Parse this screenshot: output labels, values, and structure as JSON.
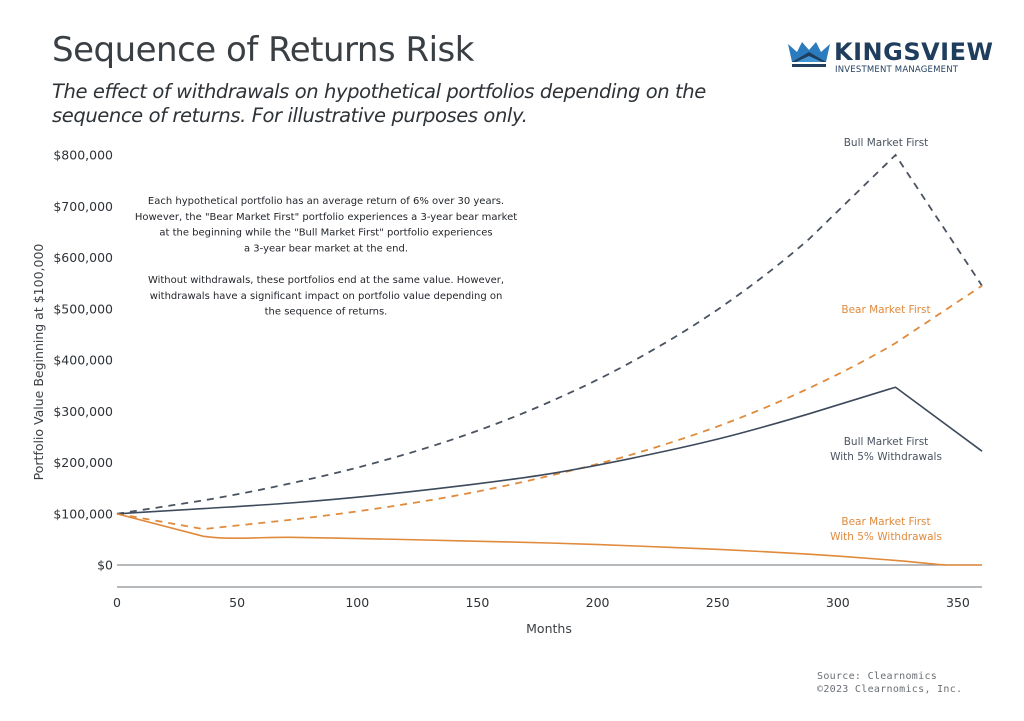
{
  "header": {
    "title": "Sequence of Returns Risk",
    "subtitle": "The effect of withdrawals on hypothetical portfolios depending on the sequence of returns. For illustrative purposes only."
  },
  "logo": {
    "name": "KINGSVIEW",
    "tagline": "INVESTMENT MANAGEMENT",
    "icon": "crown-icon",
    "color": "#1f3d5c",
    "accent": "#2b7bbf"
  },
  "footer": {
    "source": "Source: Clearnomics",
    "copyright": "©2023 Clearnomics, Inc."
  },
  "chart_data": {
    "type": "line",
    "title": "Sequence of Returns Risk",
    "xlabel": "Months",
    "ylabel": "Portfolio Value Beginning at $100,000",
    "xlim": [
      0,
      360
    ],
    "ylim": [
      0,
      800000
    ],
    "x_ticks": [
      0,
      50,
      100,
      150,
      200,
      250,
      300,
      350
    ],
    "y_ticks": [
      0,
      100000,
      200000,
      300000,
      400000,
      500000,
      600000,
      700000,
      800000
    ],
    "y_tick_labels": [
      "$0",
      "$100,000",
      "$200,000",
      "$300,000",
      "$400,000",
      "$500,000",
      "$600,000",
      "$700,000",
      "$800,000"
    ],
    "grid": false,
    "annotation": [
      "Each hypothetical portfolio has an average return of 6% over 30 years.",
      "However, the \"Bear Market First\" portfolio experiences a 3-year bear market",
      "at the beginning while the \"Bull Market First\" portfolio experiences",
      "a 3-year bear market at the end.",
      "",
      "Without withdrawals, these portfolios end at the same value. However,",
      "withdrawals have a significant impact on portfolio value depending on",
      "the sequence of returns."
    ],
    "series": [
      {
        "name": "Bull Market First",
        "label_lines": [
          "Bull Market First"
        ],
        "color": "#4a5360",
        "style": "dashed",
        "x": [
          0,
          36,
          72,
          108,
          144,
          180,
          216,
          252,
          288,
          324,
          360
        ],
        "values": [
          100000,
          126000,
          159000,
          200000,
          252000,
          318000,
          401000,
          505000,
          636000,
          800000,
          545000
        ]
      },
      {
        "name": "Bear Market First",
        "label_lines": [
          "Bear Market First"
        ],
        "color": "#e08a3c",
        "style": "dashed",
        "x": [
          0,
          36,
          72,
          108,
          144,
          180,
          216,
          252,
          288,
          324,
          360
        ],
        "values": [
          100000,
          70000,
          88000,
          110000,
          138000,
          174000,
          218000,
          274000,
          345000,
          433000,
          545000
        ]
      },
      {
        "name": "Bull Market First With 5% Withdrawals",
        "label_lines": [
          "Bull Market First",
          "With 5% Withdrawals"
        ],
        "color": "#3d4a5c",
        "style": "solid",
        "x": [
          0,
          36,
          72,
          108,
          144,
          180,
          216,
          252,
          288,
          324,
          360
        ],
        "values": [
          100000,
          110000,
          121000,
          136000,
          155000,
          178000,
          210000,
          248000,
          295000,
          347000,
          222000
        ]
      },
      {
        "name": "Bear Market First With 5% Withdrawals",
        "label_lines": [
          "Bear Market First",
          "With 5% Withdrawals"
        ],
        "color": "#e08a3c",
        "style": "solid",
        "x": [
          0,
          36,
          72,
          108,
          144,
          180,
          216,
          252,
          288,
          324,
          345,
          360
        ],
        "values": [
          100000,
          56000,
          54000,
          51000,
          47000,
          43000,
          37000,
          30000,
          21000,
          9000,
          0,
          0
        ]
      }
    ]
  }
}
